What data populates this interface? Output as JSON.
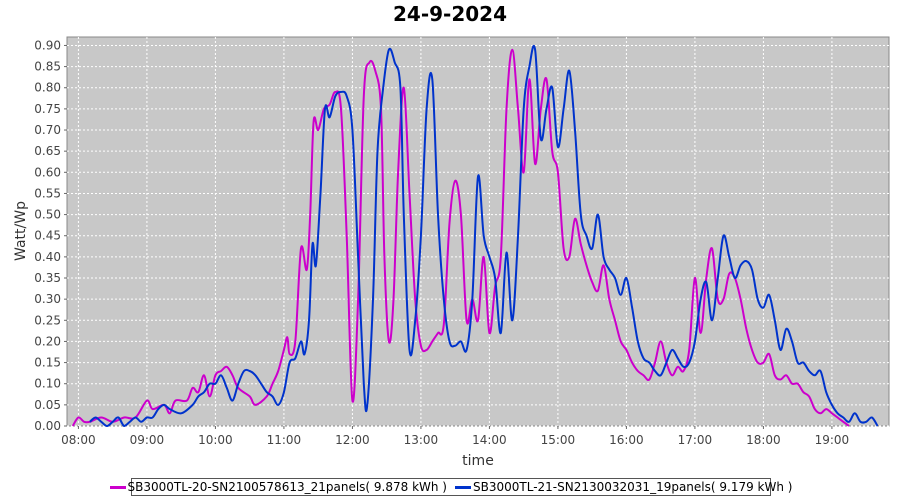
{
  "chart_data": {
    "type": "line",
    "title": "24-9-2024",
    "xlabel": "time",
    "ylabel": "Watt/Wp",
    "ylim": [
      0,
      0.92
    ],
    "xlim": [
      "07:50",
      "19:50"
    ],
    "grid": true,
    "legend_position": "bottom",
    "x_ticks": [
      "08:00",
      "09:00",
      "10:00",
      "11:00",
      "12:00",
      "13:00",
      "14:00",
      "15:00",
      "16:00",
      "17:00",
      "18:00",
      "19:00"
    ],
    "y_ticks": [
      "0.00",
      "0.05",
      "0.10",
      "0.15",
      "0.20",
      "0.25",
      "0.30",
      "0.35",
      "0.40",
      "0.45",
      "0.50",
      "0.55",
      "0.60",
      "0.65",
      "0.70",
      "0.75",
      "0.80",
      "0.85",
      "0.90"
    ],
    "series": [
      {
        "name": "SB3000TL-20-SN2100578613_21panels( 9.878 kWh )",
        "color": "#cc00cc",
        "points": [
          [
            "07:55",
            0.0
          ],
          [
            "08:00",
            0.02
          ],
          [
            "08:05",
            0.01
          ],
          [
            "08:10",
            0.01
          ],
          [
            "08:20",
            0.02
          ],
          [
            "08:30",
            0.01
          ],
          [
            "08:40",
            0.02
          ],
          [
            "08:50",
            0.02
          ],
          [
            "09:00",
            0.06
          ],
          [
            "09:05",
            0.04
          ],
          [
            "09:15",
            0.05
          ],
          [
            "09:20",
            0.03
          ],
          [
            "09:25",
            0.06
          ],
          [
            "09:35",
            0.06
          ],
          [
            "09:40",
            0.09
          ],
          [
            "09:45",
            0.08
          ],
          [
            "09:50",
            0.12
          ],
          [
            "09:55",
            0.07
          ],
          [
            "10:00",
            0.12
          ],
          [
            "10:05",
            0.13
          ],
          [
            "10:10",
            0.14
          ],
          [
            "10:15",
            0.12
          ],
          [
            "10:20",
            0.09
          ],
          [
            "10:30",
            0.07
          ],
          [
            "10:35",
            0.05
          ],
          [
            "10:45",
            0.07
          ],
          [
            "10:50",
            0.1
          ],
          [
            "10:55",
            0.13
          ],
          [
            "11:00",
            0.18
          ],
          [
            "11:03",
            0.21
          ],
          [
            "11:05",
            0.17
          ],
          [
            "11:10",
            0.2
          ],
          [
            "11:15",
            0.42
          ],
          [
            "11:20",
            0.37
          ],
          [
            "11:23",
            0.5
          ],
          [
            "11:26",
            0.72
          ],
          [
            "11:30",
            0.7
          ],
          [
            "11:35",
            0.75
          ],
          [
            "11:40",
            0.76
          ],
          [
            "11:45",
            0.79
          ],
          [
            "11:50",
            0.75
          ],
          [
            "11:55",
            0.45
          ],
          [
            "12:00",
            0.06
          ],
          [
            "12:05",
            0.3
          ],
          [
            "12:10",
            0.78
          ],
          [
            "12:15",
            0.86
          ],
          [
            "12:20",
            0.84
          ],
          [
            "12:25",
            0.75
          ],
          [
            "12:28",
            0.4
          ],
          [
            "12:32",
            0.2
          ],
          [
            "12:36",
            0.3
          ],
          [
            "12:40",
            0.6
          ],
          [
            "12:45",
            0.8
          ],
          [
            "12:50",
            0.55
          ],
          [
            "12:55",
            0.3
          ],
          [
            "13:00",
            0.19
          ],
          [
            "13:05",
            0.18
          ],
          [
            "13:10",
            0.2
          ],
          [
            "13:15",
            0.22
          ],
          [
            "13:20",
            0.24
          ],
          [
            "13:25",
            0.48
          ],
          [
            "13:30",
            0.58
          ],
          [
            "13:35",
            0.5
          ],
          [
            "13:40",
            0.25
          ],
          [
            "13:45",
            0.3
          ],
          [
            "13:50",
            0.25
          ],
          [
            "13:55",
            0.4
          ],
          [
            "14:00",
            0.22
          ],
          [
            "14:05",
            0.33
          ],
          [
            "14:10",
            0.4
          ],
          [
            "14:15",
            0.75
          ],
          [
            "14:20",
            0.89
          ],
          [
            "14:25",
            0.75
          ],
          [
            "14:30",
            0.6
          ],
          [
            "14:35",
            0.82
          ],
          [
            "14:40",
            0.62
          ],
          [
            "14:45",
            0.75
          ],
          [
            "14:50",
            0.82
          ],
          [
            "14:55",
            0.65
          ],
          [
            "15:00",
            0.6
          ],
          [
            "15:05",
            0.42
          ],
          [
            "15:10",
            0.4
          ],
          [
            "15:15",
            0.49
          ],
          [
            "15:20",
            0.43
          ],
          [
            "15:25",
            0.38
          ],
          [
            "15:30",
            0.34
          ],
          [
            "15:35",
            0.32
          ],
          [
            "15:40",
            0.38
          ],
          [
            "15:45",
            0.3
          ],
          [
            "15:50",
            0.25
          ],
          [
            "15:55",
            0.2
          ],
          [
            "16:00",
            0.18
          ],
          [
            "16:05",
            0.15
          ],
          [
            "16:10",
            0.13
          ],
          [
            "16:15",
            0.12
          ],
          [
            "16:20",
            0.11
          ],
          [
            "16:25",
            0.15
          ],
          [
            "16:30",
            0.2
          ],
          [
            "16:35",
            0.15
          ],
          [
            "16:40",
            0.12
          ],
          [
            "16:45",
            0.14
          ],
          [
            "16:50",
            0.13
          ],
          [
            "16:55",
            0.18
          ],
          [
            "17:00",
            0.35
          ],
          [
            "17:05",
            0.22
          ],
          [
            "17:10",
            0.35
          ],
          [
            "17:15",
            0.42
          ],
          [
            "17:20",
            0.3
          ],
          [
            "17:25",
            0.3
          ],
          [
            "17:30",
            0.36
          ],
          [
            "17:35",
            0.35
          ],
          [
            "17:40",
            0.3
          ],
          [
            "17:45",
            0.23
          ],
          [
            "17:50",
            0.18
          ],
          [
            "17:55",
            0.15
          ],
          [
            "18:00",
            0.15
          ],
          [
            "18:05",
            0.17
          ],
          [
            "18:10",
            0.12
          ],
          [
            "18:15",
            0.11
          ],
          [
            "18:20",
            0.12
          ],
          [
            "18:25",
            0.1
          ],
          [
            "18:30",
            0.1
          ],
          [
            "18:35",
            0.08
          ],
          [
            "18:40",
            0.07
          ],
          [
            "18:45",
            0.04
          ],
          [
            "18:50",
            0.03
          ],
          [
            "18:55",
            0.04
          ],
          [
            "19:00",
            0.03
          ],
          [
            "19:05",
            0.02
          ],
          [
            "19:10",
            0.01
          ],
          [
            "19:15",
            0.0
          ]
        ]
      },
      {
        "name": "SB3000TL-21-SN2130032031_19panels( 9.179 kWh )",
        "color": "#0033cc",
        "points": [
          [
            "08:10",
            0.01
          ],
          [
            "08:15",
            0.02
          ],
          [
            "08:20",
            0.01
          ],
          [
            "08:25",
            0.0
          ],
          [
            "08:30",
            0.01
          ],
          [
            "08:35",
            0.02
          ],
          [
            "08:40",
            0.0
          ],
          [
            "08:45",
            0.01
          ],
          [
            "08:50",
            0.02
          ],
          [
            "08:55",
            0.01
          ],
          [
            "09:00",
            0.02
          ],
          [
            "09:05",
            0.02
          ],
          [
            "09:10",
            0.04
          ],
          [
            "09:15",
            0.05
          ],
          [
            "09:20",
            0.04
          ],
          [
            "09:30",
            0.03
          ],
          [
            "09:40",
            0.05
          ],
          [
            "09:45",
            0.07
          ],
          [
            "09:50",
            0.08
          ],
          [
            "09:55",
            0.1
          ],
          [
            "10:00",
            0.1
          ],
          [
            "10:05",
            0.12
          ],
          [
            "10:10",
            0.09
          ],
          [
            "10:15",
            0.06
          ],
          [
            "10:20",
            0.1
          ],
          [
            "10:25",
            0.13
          ],
          [
            "10:30",
            0.13
          ],
          [
            "10:35",
            0.12
          ],
          [
            "10:40",
            0.1
          ],
          [
            "10:45",
            0.08
          ],
          [
            "10:50",
            0.07
          ],
          [
            "10:55",
            0.05
          ],
          [
            "11:00",
            0.08
          ],
          [
            "11:05",
            0.15
          ],
          [
            "11:10",
            0.16
          ],
          [
            "11:15",
            0.2
          ],
          [
            "11:18",
            0.17
          ],
          [
            "11:22",
            0.25
          ],
          [
            "11:25",
            0.43
          ],
          [
            "11:28",
            0.38
          ],
          [
            "11:32",
            0.55
          ],
          [
            "11:36",
            0.75
          ],
          [
            "11:40",
            0.73
          ],
          [
            "11:45",
            0.78
          ],
          [
            "11:50",
            0.79
          ],
          [
            "11:55",
            0.78
          ],
          [
            "12:00",
            0.7
          ],
          [
            "12:05",
            0.4
          ],
          [
            "12:10",
            0.1
          ],
          [
            "12:13",
            0.05
          ],
          [
            "12:18",
            0.3
          ],
          [
            "12:22",
            0.65
          ],
          [
            "12:27",
            0.8
          ],
          [
            "12:32",
            0.89
          ],
          [
            "12:37",
            0.86
          ],
          [
            "12:42",
            0.8
          ],
          [
            "12:45",
            0.5
          ],
          [
            "12:50",
            0.18
          ],
          [
            "12:55",
            0.25
          ],
          [
            "13:00",
            0.45
          ],
          [
            "13:05",
            0.75
          ],
          [
            "13:10",
            0.82
          ],
          [
            "13:15",
            0.5
          ],
          [
            "13:20",
            0.3
          ],
          [
            "13:25",
            0.2
          ],
          [
            "13:30",
            0.19
          ],
          [
            "13:35",
            0.2
          ],
          [
            "13:40",
            0.18
          ],
          [
            "13:45",
            0.3
          ],
          [
            "13:50",
            0.59
          ],
          [
            "13:55",
            0.45
          ],
          [
            "14:00",
            0.4
          ],
          [
            "14:05",
            0.35
          ],
          [
            "14:10",
            0.22
          ],
          [
            "14:15",
            0.41
          ],
          [
            "14:20",
            0.25
          ],
          [
            "14:25",
            0.45
          ],
          [
            "14:30",
            0.75
          ],
          [
            "14:35",
            0.85
          ],
          [
            "14:40",
            0.89
          ],
          [
            "14:45",
            0.68
          ],
          [
            "14:50",
            0.75
          ],
          [
            "14:55",
            0.8
          ],
          [
            "15:00",
            0.66
          ],
          [
            "15:05",
            0.75
          ],
          [
            "15:10",
            0.84
          ],
          [
            "15:15",
            0.7
          ],
          [
            "15:20",
            0.5
          ],
          [
            "15:25",
            0.45
          ],
          [
            "15:30",
            0.42
          ],
          [
            "15:35",
            0.5
          ],
          [
            "15:40",
            0.4
          ],
          [
            "15:45",
            0.37
          ],
          [
            "15:50",
            0.35
          ],
          [
            "15:55",
            0.31
          ],
          [
            "16:00",
            0.35
          ],
          [
            "16:05",
            0.28
          ],
          [
            "16:10",
            0.2
          ],
          [
            "16:15",
            0.16
          ],
          [
            "16:20",
            0.15
          ],
          [
            "16:25",
            0.13
          ],
          [
            "16:30",
            0.12
          ],
          [
            "16:35",
            0.15
          ],
          [
            "16:40",
            0.18
          ],
          [
            "16:45",
            0.16
          ],
          [
            "16:50",
            0.14
          ],
          [
            "16:55",
            0.15
          ],
          [
            "17:00",
            0.2
          ],
          [
            "17:05",
            0.3
          ],
          [
            "17:10",
            0.34
          ],
          [
            "17:15",
            0.25
          ],
          [
            "17:20",
            0.35
          ],
          [
            "17:25",
            0.45
          ],
          [
            "17:30",
            0.4
          ],
          [
            "17:35",
            0.35
          ],
          [
            "17:40",
            0.38
          ],
          [
            "17:45",
            0.39
          ],
          [
            "17:50",
            0.37
          ],
          [
            "17:55",
            0.3
          ],
          [
            "18:00",
            0.28
          ],
          [
            "18:05",
            0.31
          ],
          [
            "18:10",
            0.25
          ],
          [
            "18:15",
            0.18
          ],
          [
            "18:20",
            0.23
          ],
          [
            "18:25",
            0.2
          ],
          [
            "18:30",
            0.15
          ],
          [
            "18:35",
            0.15
          ],
          [
            "18:40",
            0.13
          ],
          [
            "18:45",
            0.12
          ],
          [
            "18:50",
            0.13
          ],
          [
            "18:55",
            0.08
          ],
          [
            "19:00",
            0.05
          ],
          [
            "19:05",
            0.03
          ],
          [
            "19:10",
            0.02
          ],
          [
            "19:15",
            0.01
          ],
          [
            "19:20",
            0.03
          ],
          [
            "19:25",
            0.01
          ],
          [
            "19:30",
            0.01
          ],
          [
            "19:35",
            0.02
          ],
          [
            "19:40",
            0.0
          ]
        ]
      }
    ]
  }
}
